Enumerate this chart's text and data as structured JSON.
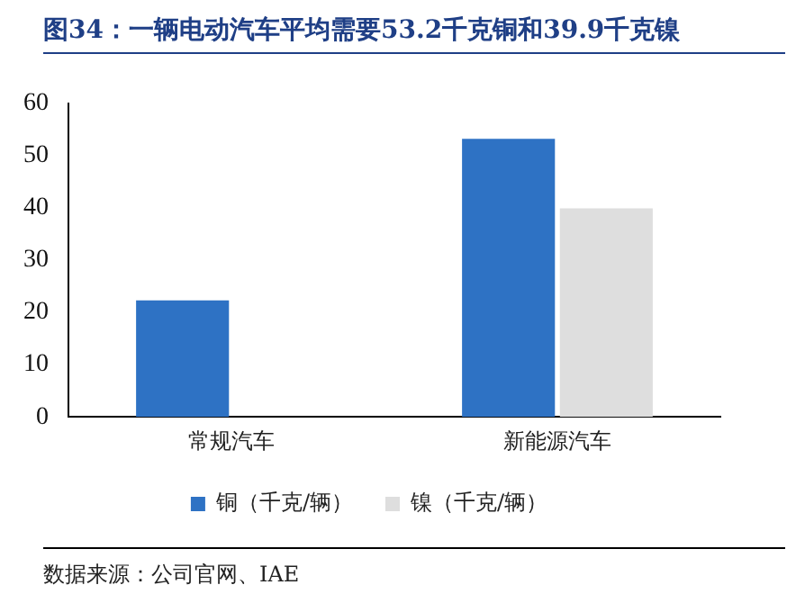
{
  "chart_data": {
    "type": "bar",
    "title": "图34：一辆电动汽车平均需要53.2千克铜和39.9千克镍",
    "categories": [
      "常规汽车",
      "新能源汽车"
    ],
    "series": [
      {
        "name": "铜（千克/辆）",
        "color": "#2e72c4",
        "values": [
          22.3,
          53.2
        ]
      },
      {
        "name": "镍（千克/辆）",
        "color": "#dedede",
        "values": [
          null,
          39.9
        ]
      }
    ],
    "ylim": [
      0,
      60
    ],
    "yticks": [
      0,
      10,
      20,
      30,
      40,
      50,
      60
    ],
    "grid": false,
    "legend": "bottom",
    "annotations": [
      "数据来源：公司官网、IAE"
    ]
  }
}
